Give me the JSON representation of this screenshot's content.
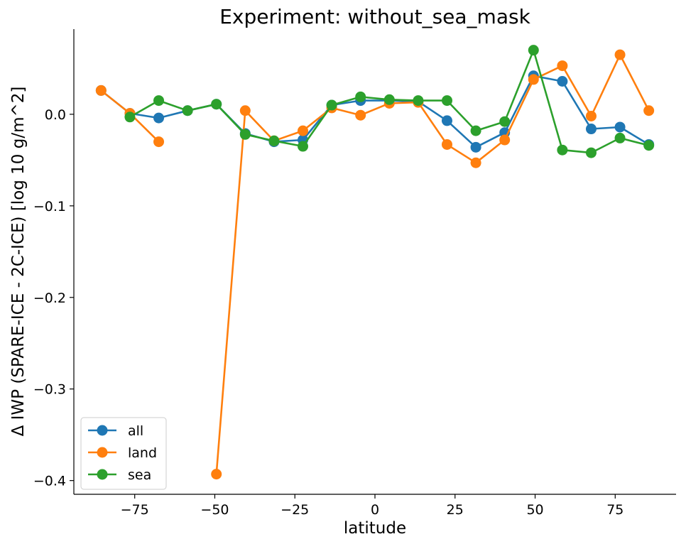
{
  "chart_data": {
    "type": "line",
    "title": "Experiment: without_sea_mask",
    "xlabel": "latitude",
    "ylabel": "Δ IWP (SPARE-ICE - 2C-ICE) [log 10 g/m^2]",
    "xlim": [
      -94,
      94
    ],
    "ylim": [
      -0.415,
      0.093
    ],
    "xticks": [
      -75,
      -50,
      -25,
      0,
      25,
      50,
      75
    ],
    "xtick_labels": [
      "−75",
      "−50",
      "−25",
      "0",
      "25",
      "50",
      "75"
    ],
    "yticks": [
      0.0,
      -0.1,
      -0.2,
      -0.3,
      -0.4
    ],
    "ytick_labels": [
      "0.0",
      "−0.1",
      "−0.2",
      "−0.3",
      "−0.4"
    ],
    "grid": false,
    "legend_position": "bottom-left",
    "series": [
      {
        "name": "all",
        "color": "#1f77b4",
        "x": [
          -85.5,
          -76.5,
          -67.5,
          -58.5,
          -49.5,
          -40.5,
          -31.5,
          -22.5,
          -13.5,
          -4.5,
          4.5,
          13.5,
          22.5,
          31.5,
          40.5,
          49.5,
          58.5,
          67.5,
          76.5,
          85.5
        ],
        "y": [
          0.026,
          0.001,
          -0.004,
          0.004,
          0.011,
          -0.021,
          -0.03,
          -0.028,
          0.01,
          0.015,
          0.015,
          0.014,
          -0.007,
          -0.036,
          -0.02,
          0.042,
          0.036,
          -0.016,
          -0.014,
          -0.033
        ]
      },
      {
        "name": "land",
        "color": "#ff7f0e",
        "x": [
          -85.5,
          -76.5,
          -67.5,
          null,
          -49.5,
          -40.5,
          -31.5,
          -22.5,
          -13.5,
          -4.5,
          4.5,
          13.5,
          22.5,
          31.5,
          40.5,
          49.5,
          58.5,
          67.5,
          76.5,
          85.5
        ],
        "y": [
          0.026,
          0.001,
          -0.03,
          null,
          -0.393,
          0.004,
          -0.029,
          -0.018,
          0.007,
          -0.001,
          0.012,
          0.013,
          -0.033,
          -0.053,
          -0.028,
          0.038,
          0.053,
          -0.002,
          0.065,
          0.004
        ]
      },
      {
        "name": "sea",
        "color": "#2ca02c",
        "x": [
          -76.5,
          -67.5,
          -58.5,
          -49.5,
          -40.5,
          -31.5,
          -22.5,
          -13.5,
          -4.5,
          4.5,
          13.5,
          22.5,
          31.5,
          40.5,
          49.5,
          58.5,
          67.5,
          76.5,
          85.5
        ],
        "y": [
          -0.003,
          0.015,
          0.004,
          0.011,
          -0.022,
          -0.029,
          -0.035,
          0.01,
          0.019,
          0.016,
          0.015,
          0.015,
          -0.018,
          -0.008,
          0.07,
          -0.039,
          -0.042,
          -0.026,
          -0.034
        ]
      }
    ]
  }
}
